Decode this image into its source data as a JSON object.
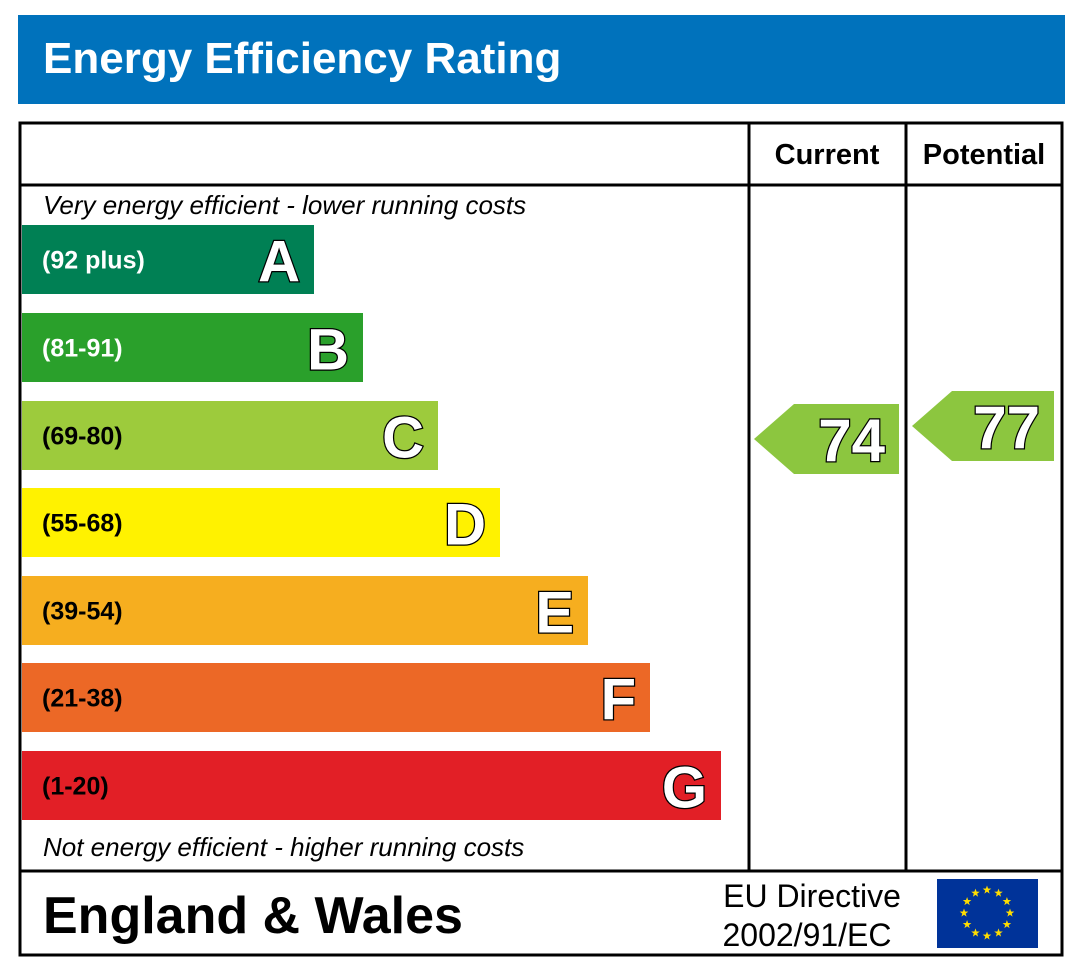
{
  "header": {
    "title": "Energy Efficiency Rating"
  },
  "columns": [
    "Current",
    "Potential"
  ],
  "top_note": "Very energy efficient - lower running costs",
  "bands": [
    {
      "range": "(92 plus)",
      "letter": "A",
      "color": "#008054"
    },
    {
      "range": "(81-91)",
      "letter": "B",
      "color": "#2aa02b"
    },
    {
      "range": "(69-80)",
      "letter": "C",
      "color": "#9dcb3c"
    },
    {
      "range": "(55-68)",
      "letter": "D",
      "color": "#fff200"
    },
    {
      "range": "(39-54)",
      "letter": "E",
      "color": "#f6ae1f"
    },
    {
      "range": "(21-38)",
      "letter": "F",
      "color": "#ec6826"
    },
    {
      "range": "(1-20)",
      "letter": "G",
      "color": "#e21f26"
    }
  ],
  "bottom_note": "Not energy efficient - higher running costs",
  "current": {
    "value": 74,
    "color": "#8cc63f"
  },
  "potential": {
    "value": 77,
    "color": "#8cc63f"
  },
  "footer": {
    "region": "England & Wales",
    "directive": [
      "EU Directive",
      "2002/91/EC"
    ]
  }
}
